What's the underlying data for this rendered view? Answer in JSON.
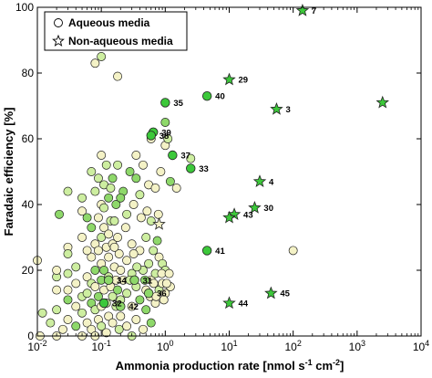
{
  "chart_data": {
    "type": "scatter",
    "title": "",
    "xlabel": "Ammonia production rate [nmol s",
    "xlabel_sup1": "-1",
    "xlabel_mid": " cm",
    "xlabel_sup2": "-2",
    "xlabel_end": "]",
    "ylabel": "Faradaic efficiency [%]",
    "xscale": "log",
    "xlim": [
      0.01,
      10000
    ],
    "ylim": [
      0,
      100
    ],
    "x_tick_labels": [
      {
        "base": "10",
        "exp": "-2"
      },
      {
        "base": "10",
        "exp": "-1"
      },
      {
        "base": "10",
        "exp": "0"
      },
      {
        "base": "10",
        "exp": "1"
      },
      {
        "base": "10",
        "exp": "2"
      },
      {
        "base": "10",
        "exp": "3"
      },
      {
        "base": "10",
        "exp": "4"
      }
    ],
    "y_ticks": [
      0,
      20,
      40,
      60,
      80,
      100
    ],
    "y_tick_labels": [
      "0",
      "20",
      "40",
      "60",
      "80",
      "100"
    ],
    "grid": false,
    "legend_position": "top-left",
    "legend": [
      {
        "marker": "circle",
        "label": "Aqueous media"
      },
      {
        "marker": "star",
        "label": "Non-aqueous media"
      }
    ],
    "colors": {
      "light": "#f4f2c6",
      "pale_green": "#cdeea0",
      "mid_green": "#8ed86a",
      "green": "#3cc83a",
      "edge": "#222222"
    },
    "series": [
      {
        "marker": "circle",
        "points": [
          [
            0.01,
            23
          ],
          [
            0.012,
            7
          ],
          [
            0.011,
            0
          ],
          [
            0.016,
            4
          ],
          [
            0.02,
            0
          ],
          [
            0.02,
            18
          ],
          [
            0.02,
            14
          ],
          [
            0.02,
            8
          ],
          [
            0.02,
            20
          ],
          [
            0.022,
            37
          ],
          [
            0.025,
            2
          ],
          [
            0.03,
            44
          ],
          [
            0.03,
            27
          ],
          [
            0.03,
            25
          ],
          [
            0.03,
            14
          ],
          [
            0.03,
            11
          ],
          [
            0.03,
            5
          ],
          [
            0.03,
            19
          ],
          [
            0.04,
            16
          ],
          [
            0.04,
            21
          ],
          [
            0.04,
            9
          ],
          [
            0.04,
            3
          ],
          [
            0.05,
            0
          ],
          [
            0.05,
            12
          ],
          [
            0.05,
            30
          ],
          [
            0.05,
            7
          ],
          [
            0.05,
            38
          ],
          [
            0.06,
            36
          ],
          [
            0.06,
            18
          ],
          [
            0.06,
            13
          ],
          [
            0.06,
            4
          ],
          [
            0.07,
            50
          ],
          [
            0.07,
            24
          ],
          [
            0.07,
            10
          ],
          [
            0.07,
            2
          ],
          [
            0.07,
            16
          ],
          [
            0.08,
            83
          ],
          [
            0.08,
            44
          ],
          [
            0.08,
            28
          ],
          [
            0.08,
            20
          ],
          [
            0.08,
            15
          ],
          [
            0.08,
            8
          ],
          [
            0.08,
            0
          ],
          [
            0.09,
            48
          ],
          [
            0.09,
            26
          ],
          [
            0.09,
            12
          ],
          [
            0.09,
            5
          ],
          [
            0.1,
            85
          ],
          [
            0.1,
            40
          ],
          [
            0.1,
            30
          ],
          [
            0.1,
            22
          ],
          [
            0.1,
            17
          ],
          [
            0.1,
            9
          ],
          [
            0.1,
            3
          ],
          [
            0.1,
            55
          ],
          [
            0.11,
            46
          ],
          [
            0.11,
            33
          ],
          [
            0.11,
            20
          ],
          [
            0.11,
            14
          ],
          [
            0.12,
            52
          ],
          [
            0.12,
            27
          ],
          [
            0.12,
            10
          ],
          [
            0.12,
            1
          ],
          [
            0.13,
            42
          ],
          [
            0.13,
            24
          ],
          [
            0.13,
            18
          ],
          [
            0.13,
            6
          ],
          [
            0.14,
            35
          ],
          [
            0.14,
            15
          ],
          [
            0.15,
            48
          ],
          [
            0.15,
            28
          ],
          [
            0.15,
            12
          ],
          [
            0.15,
            4
          ],
          [
            0.16,
            35
          ],
          [
            0.16,
            21
          ],
          [
            0.17,
            40
          ],
          [
            0.17,
            17
          ],
          [
            0.17,
            9
          ],
          [
            0.18,
            79
          ],
          [
            0.18,
            52
          ],
          [
            0.18,
            30
          ],
          [
            0.18,
            14
          ],
          [
            0.19,
            25
          ],
          [
            0.19,
            2
          ],
          [
            0.2,
            20
          ],
          [
            0.2,
            11
          ],
          [
            0.2,
            6
          ],
          [
            0.22,
            44
          ],
          [
            0.22,
            17
          ],
          [
            0.25,
            37
          ],
          [
            0.25,
            23
          ],
          [
            0.25,
            13
          ],
          [
            0.25,
            3
          ],
          [
            0.28,
            50
          ],
          [
            0.3,
            28
          ],
          [
            0.3,
            19
          ],
          [
            0.3,
            9
          ],
          [
            0.3,
            0
          ],
          [
            0.32,
            40
          ],
          [
            0.35,
            48
          ],
          [
            0.35,
            55
          ],
          [
            0.35,
            15
          ],
          [
            0.35,
            5
          ],
          [
            0.4,
            43
          ],
          [
            0.4,
            26
          ],
          [
            0.4,
            11
          ],
          [
            0.45,
            52
          ],
          [
            0.45,
            20
          ],
          [
            0.45,
            2
          ],
          [
            0.5,
            30
          ],
          [
            0.5,
            14
          ],
          [
            0.5,
            8
          ],
          [
            0.55,
            46
          ],
          [
            0.55,
            22
          ],
          [
            0.6,
            60
          ],
          [
            0.6,
            35
          ],
          [
            0.6,
            17
          ],
          [
            0.6,
            4
          ],
          [
            0.65,
            62
          ],
          [
            0.65,
            26
          ],
          [
            0.7,
            45
          ],
          [
            0.7,
            19
          ],
          [
            0.7,
            10
          ],
          [
            0.75,
            29
          ],
          [
            0.8,
            24
          ],
          [
            0.8,
            14
          ],
          [
            0.85,
            50
          ],
          [
            0.9,
            22
          ],
          [
            0.9,
            16
          ],
          [
            1.0,
            65
          ],
          [
            1.0,
            58
          ],
          [
            1.0,
            20
          ],
          [
            1.0,
            13
          ],
          [
            1.1,
            60
          ],
          [
            1.2,
            15
          ],
          [
            1.2,
            47
          ],
          [
            1.5,
            45
          ],
          [
            2.5,
            54
          ],
          [
            100,
            26
          ],
          [
            0.05,
            42
          ],
          [
            0.06,
            26
          ],
          [
            0.07,
            33
          ],
          [
            0.09,
            36
          ],
          [
            0.11,
            39
          ],
          [
            0.13,
            31
          ],
          [
            0.14,
            45
          ],
          [
            0.16,
            27
          ],
          [
            0.2,
            42
          ],
          [
            0.24,
            33
          ],
          [
            0.28,
            17
          ],
          [
            0.32,
            25
          ],
          [
            0.36,
            21
          ],
          [
            0.42,
            36
          ],
          [
            0.48,
            17
          ],
          [
            0.52,
            38
          ],
          [
            0.58,
            12
          ],
          [
            0.66,
            16
          ],
          [
            0.72,
            12
          ],
          [
            0.78,
            37
          ],
          [
            0.88,
            19
          ],
          [
            0.95,
            11
          ],
          [
            1.05,
            16
          ],
          [
            1.15,
            19
          ]
        ],
        "fill_codes": "LPLPLPLPLMLPLPLMLPLPLMLPLPLMLPLPLMLPLPLMLPLPLMLPLPLMLPLPLMLPLPLMLPLPLMLPLPLMLPLPLMLPLPLMLPLPLMLPLPLMLPLPLMLPLPLMLPLPLMLPLPLMLPLPLMLPLPLMLPLPLMLPLPLMLPLPLML"
      },
      {
        "marker": "circle_annotated",
        "points": [
          {
            "x": 1.0,
            "y": 71,
            "label": "35",
            "fill": "green"
          },
          {
            "x": 4.5,
            "y": 73,
            "label": "40",
            "fill": "green"
          },
          {
            "x": 0.65,
            "y": 62,
            "label": "39",
            "fill": "green"
          },
          {
            "x": 0.6,
            "y": 61,
            "label": "38",
            "fill": "green"
          },
          {
            "x": 1.3,
            "y": 55,
            "label": "37",
            "fill": "green"
          },
          {
            "x": 2.5,
            "y": 51,
            "label": "33",
            "fill": "green"
          },
          {
            "x": 4.5,
            "y": 26,
            "label": "41",
            "fill": "green"
          },
          {
            "x": 0.13,
            "y": 17,
            "label": "34",
            "fill": "mid_green"
          },
          {
            "x": 0.33,
            "y": 17,
            "label": "31",
            "fill": "mid_green"
          },
          {
            "x": 0.55,
            "y": 13,
            "label": "36",
            "fill": "mid_green"
          },
          {
            "x": 0.11,
            "y": 10,
            "label": "32",
            "fill": "green"
          },
          {
            "x": 0.2,
            "y": 9,
            "label": "42",
            "fill": "mid_green"
          }
        ]
      },
      {
        "marker": "star",
        "points": [
          {
            "x": 140,
            "y": 99,
            "label": "7",
            "fill": "green"
          },
          {
            "x": 10,
            "y": 78,
            "label": "29",
            "fill": "green"
          },
          {
            "x": 55,
            "y": 69,
            "label": "3",
            "fill": "green"
          },
          {
            "x": 2500,
            "y": 71,
            "label": "",
            "fill": "green"
          },
          {
            "x": 30,
            "y": 47,
            "label": "4",
            "fill": "green"
          },
          {
            "x": 25,
            "y": 39,
            "label": "30",
            "fill": "green"
          },
          {
            "x": 12,
            "y": 37,
            "label": "43",
            "fill": "green"
          },
          {
            "x": 10,
            "y": 36,
            "label": "",
            "fill": "green"
          },
          {
            "x": 0.8,
            "y": 34,
            "label": "",
            "fill": "light"
          },
          {
            "x": 10,
            "y": 10,
            "label": "44",
            "fill": "green"
          },
          {
            "x": 45,
            "y": 13,
            "label": "45",
            "fill": "green"
          }
        ]
      }
    ]
  }
}
